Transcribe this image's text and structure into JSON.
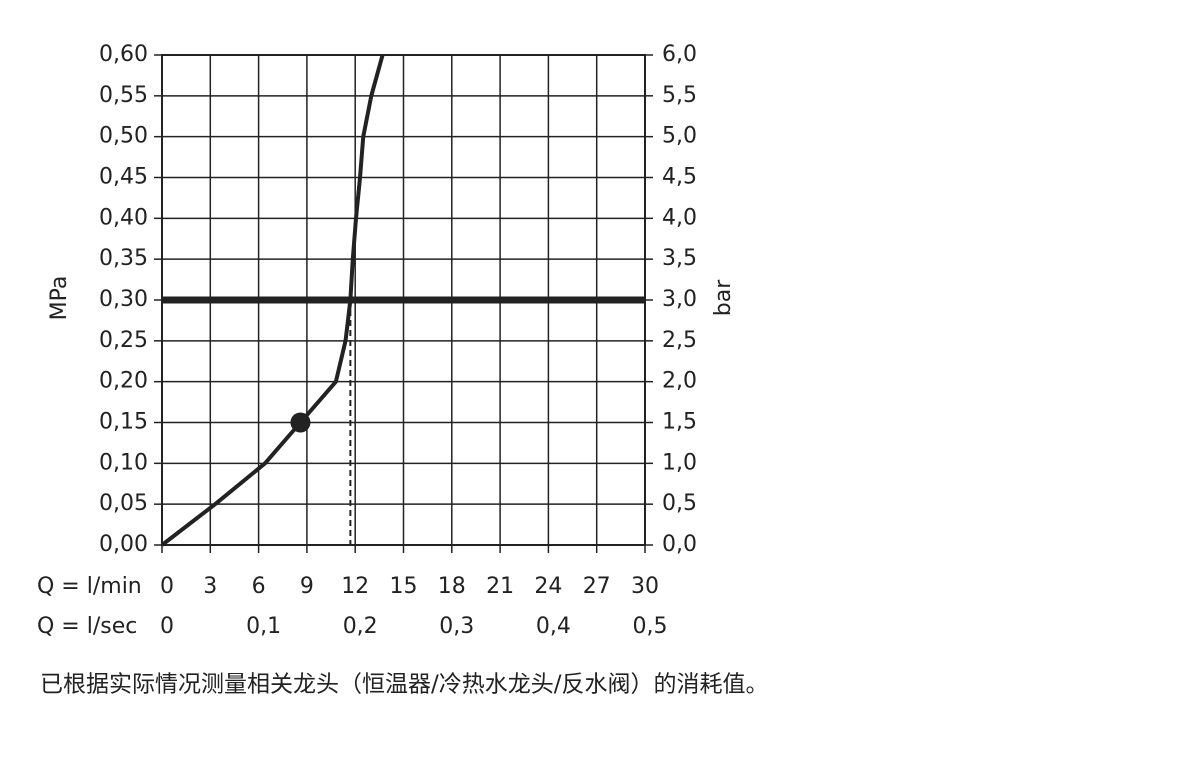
{
  "chart_data": {
    "type": "line",
    "x_label": "Q = l/min",
    "x2_label": "Q = l/sec",
    "y_label": "MPa",
    "y2_label": "bar",
    "caption": "已根据实际情况测量相关龙头（恒温器/冷热水龙头/反水阀）的消耗值。",
    "color": "#222222",
    "grid": true,
    "x": [
      0,
      3.3,
      6.4,
      8.6,
      10.8,
      11.4,
      11.7,
      11.85,
      12.05,
      12.3,
      12.5,
      13.0,
      13.7
    ],
    "values": [
      0,
      0.05,
      0.1,
      0.15,
      0.2,
      0.25,
      0.3,
      0.35,
      0.4,
      0.45,
      0.5,
      0.55,
      0.6
    ],
    "marker": {
      "x": 8.6,
      "y": 0.15
    },
    "reference_y": 0.3,
    "dashed_x": 11.7,
    "xlim": [
      0,
      30
    ],
    "xticks": [
      0,
      3,
      6,
      9,
      12,
      15,
      18,
      21,
      24,
      27,
      30
    ],
    "x2lim": [
      0,
      0.5
    ],
    "x2ticks": [
      0,
      {
        "value": 0.1,
        "label": "0,1"
      },
      {
        "value": 0.2,
        "label": "0,2"
      },
      {
        "value": 0.3,
        "label": "0,3"
      },
      {
        "value": 0.4,
        "label": "0,4"
      },
      {
        "value": 0.5,
        "label": "0,5"
      }
    ],
    "ylim": [
      0,
      0.6
    ],
    "yticks": [
      {
        "value": 0,
        "label": "0,00"
      },
      {
        "value": 0.05,
        "label": "0,05"
      },
      {
        "value": 0.1,
        "label": "0,10"
      },
      {
        "value": 0.15,
        "label": "0,15"
      },
      {
        "value": 0.2,
        "label": "0,20"
      },
      {
        "value": 0.25,
        "label": "0,25"
      },
      {
        "value": 0.3,
        "label": "0,30"
      },
      {
        "value": 0.35,
        "label": "0,35"
      },
      {
        "value": 0.4,
        "label": "0,40"
      },
      {
        "value": 0.45,
        "label": "0,45"
      },
      {
        "value": 0.5,
        "label": "0,50"
      },
      {
        "value": 0.55,
        "label": "0,55"
      },
      {
        "value": 0.6,
        "label": "0,60"
      }
    ],
    "y2lim": [
      0,
      6
    ],
    "y2ticks": [
      {
        "value": 0,
        "label": "0,0"
      },
      {
        "value": 0.5,
        "label": "0,5"
      },
      {
        "value": 1,
        "label": "1,0"
      },
      {
        "value": 1.5,
        "label": "1,5"
      },
      {
        "value": 2,
        "label": "2,0"
      },
      {
        "value": 2.5,
        "label": "2,5"
      },
      {
        "value": 3,
        "label": "3,0"
      },
      {
        "value": 3.5,
        "label": "3,5"
      },
      {
        "value": 4,
        "label": "4,0"
      },
      {
        "value": 4.5,
        "label": "4,5"
      },
      {
        "value": 5,
        "label": "5,0"
      },
      {
        "value": 5.5,
        "label": "5,5"
      },
      {
        "value": 6,
        "label": "6,0"
      }
    ]
  }
}
